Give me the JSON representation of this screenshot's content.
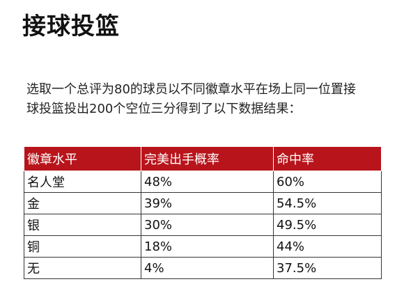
{
  "title": "接球投篮",
  "description": {
    "line1": "选取一个总评为80的球员以不同徽章水平在场上同一位置接",
    "line2": "球投篮投出200个空位三分得到了以下数据结果："
  },
  "table": {
    "headers": [
      "徽章水平",
      "完美出手概率",
      "命中率"
    ],
    "rows": [
      [
        "名人堂",
        "48%",
        "60%"
      ],
      [
        "金",
        "39%",
        "54.5%"
      ],
      [
        "银",
        "30%",
        "49.5%"
      ],
      [
        "铜",
        "18%",
        "44%"
      ],
      [
        "无",
        "4%",
        "37.5%"
      ]
    ]
  },
  "colors": {
    "header_background": "#b8141b",
    "header_text": "#ffffff"
  }
}
